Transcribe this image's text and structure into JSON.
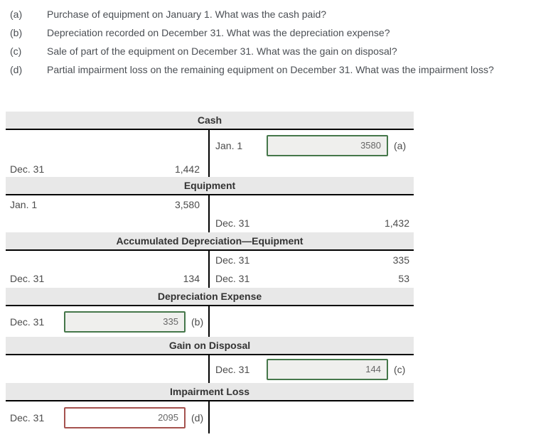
{
  "instructions": {
    "items": [
      {
        "label": "(a)",
        "text": "Purchase of equipment on January 1. What was the cash paid?"
      },
      {
        "label": "(b)",
        "text": "Depreciation recorded on December 31. What was the depreciation expense?"
      },
      {
        "label": "(c)",
        "text": "Sale of part of the equipment on December 31. What was the gain on disposal?"
      },
      {
        "label": "(d)",
        "text": "Partial impairment loss on the remaining equipment on December 31. What was the impairment loss?"
      }
    ]
  },
  "accounts": [
    {
      "title": "Cash",
      "rows": [
        {
          "right": {
            "date": "Jan. 1",
            "input_value": "3580",
            "input_state": "correct",
            "tag": "(a)"
          }
        },
        {
          "left": {
            "date": "Dec. 31",
            "amount": "1,442"
          }
        }
      ]
    },
    {
      "title": "Equipment",
      "rows": [
        {
          "left": {
            "date": "Jan. 1",
            "amount": "3,580"
          }
        },
        {
          "right": {
            "date": "Dec. 31",
            "amount": "1,432"
          }
        }
      ]
    },
    {
      "title": "Accumulated Depreciation—Equipment",
      "rows": [
        {
          "right": {
            "date": "Dec. 31",
            "amount": "335"
          }
        },
        {
          "left": {
            "date": "Dec. 31",
            "amount": "134"
          },
          "right": {
            "date": "Dec. 31",
            "amount": "53"
          }
        }
      ]
    },
    {
      "title": "Depreciation Expense",
      "rows": [
        {
          "left": {
            "date": "Dec. 31",
            "input_value": "335",
            "input_state": "correct",
            "tag": "(b)"
          }
        }
      ]
    },
    {
      "title": "Gain on Disposal",
      "rows": [
        {
          "right": {
            "date": "Dec. 31",
            "input_value": "144",
            "input_state": "correct",
            "tag": "(c)"
          }
        }
      ]
    },
    {
      "title": "Impairment Loss",
      "rows": [
        {
          "left": {
            "date": "Dec. 31",
            "input_value": "2095",
            "input_state": "incorrect",
            "tag": "(d)"
          }
        }
      ]
    }
  ],
  "colors": {
    "header_bg": "#e8e8e8",
    "rule_line": "#000000",
    "text": "#4c4f54",
    "input_correct_border": "#45774a",
    "input_correct_bg": "#efefed",
    "input_incorrect_border": "#a5524e",
    "input_incorrect_bg": "#ffffff"
  }
}
